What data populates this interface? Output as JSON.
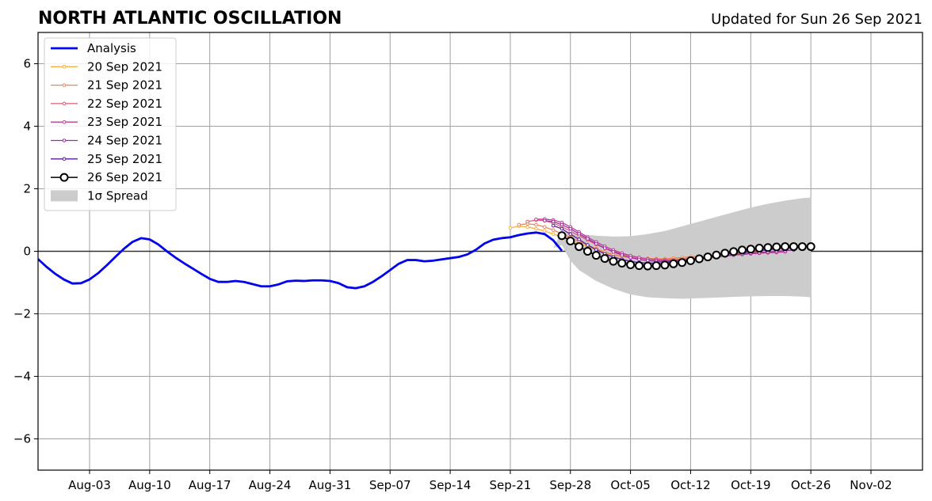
{
  "chart_data": {
    "type": "line",
    "title": "NORTH ATLANTIC OSCILLATION",
    "subtitle": "Updated for Sun 26 Sep 2021",
    "xlabel": "",
    "ylabel": "",
    "xlim": [
      "2021-07-28",
      "2021-11-08"
    ],
    "ylim": [
      -7,
      7
    ],
    "grid": true,
    "legend_position": "top-left",
    "x_ticks": [
      "Aug-03",
      "Aug-10",
      "Aug-17",
      "Aug-24",
      "Aug-31",
      "Sep-07",
      "Sep-14",
      "Sep-21",
      "Sep-28",
      "Oct-05",
      "Oct-12",
      "Oct-19",
      "Oct-26",
      "Nov-02"
    ],
    "x_tick_dates": [
      "2021-08-03",
      "2021-08-10",
      "2021-08-17",
      "2021-08-24",
      "2021-08-31",
      "2021-09-07",
      "2021-09-14",
      "2021-09-21",
      "2021-09-28",
      "2021-10-05",
      "2021-10-12",
      "2021-10-19",
      "2021-10-26",
      "2021-11-02"
    ],
    "y_ticks": [
      6,
      4,
      2,
      0,
      -2,
      -4,
      -6
    ],
    "y_tick_labels": [
      "6",
      "4",
      "2",
      "0",
      "−2",
      "−4",
      "−6"
    ],
    "analysis": {
      "name": "Analysis",
      "color": "#0000ee",
      "x": [
        "2021-07-28",
        "2021-07-29",
        "2021-07-30",
        "2021-07-31",
        "2021-08-01",
        "2021-08-02",
        "2021-08-03",
        "2021-08-04",
        "2021-08-05",
        "2021-08-06",
        "2021-08-07",
        "2021-08-08",
        "2021-08-09",
        "2021-08-10",
        "2021-08-11",
        "2021-08-12",
        "2021-08-13",
        "2021-08-14",
        "2021-08-15",
        "2021-08-16",
        "2021-08-17",
        "2021-08-18",
        "2021-08-19",
        "2021-08-20",
        "2021-08-21",
        "2021-08-22",
        "2021-08-23",
        "2021-08-24",
        "2021-08-25",
        "2021-08-26",
        "2021-08-27",
        "2021-08-28",
        "2021-08-29",
        "2021-08-30",
        "2021-08-31",
        "2021-09-01",
        "2021-09-02",
        "2021-09-03",
        "2021-09-04",
        "2021-09-05",
        "2021-09-06",
        "2021-09-07",
        "2021-09-08",
        "2021-09-09",
        "2021-09-10",
        "2021-09-11",
        "2021-09-12",
        "2021-09-13",
        "2021-09-14",
        "2021-09-15",
        "2021-09-16",
        "2021-09-17",
        "2021-09-18",
        "2021-09-19",
        "2021-09-20",
        "2021-09-21",
        "2021-09-22",
        "2021-09-23",
        "2021-09-24",
        "2021-09-25",
        "2021-09-26",
        "2021-09-27"
      ],
      "y": [
        -0.25,
        -0.5,
        -0.72,
        -0.9,
        -1.03,
        -1.02,
        -0.9,
        -0.7,
        -0.45,
        -0.18,
        0.08,
        0.3,
        0.42,
        0.38,
        0.22,
        0.0,
        -0.2,
        -0.38,
        -0.55,
        -0.72,
        -0.88,
        -0.98,
        -0.98,
        -0.95,
        -0.98,
        -1.05,
        -1.12,
        -1.12,
        -1.06,
        -0.96,
        -0.94,
        -0.95,
        -0.93,
        -0.93,
        -0.95,
        -1.02,
        -1.15,
        -1.18,
        -1.12,
        -0.98,
        -0.8,
        -0.6,
        -0.4,
        -0.28,
        -0.28,
        -0.32,
        -0.3,
        -0.26,
        -0.22,
        -0.18,
        -0.1,
        0.05,
        0.25,
        0.37,
        0.42,
        0.45,
        0.52,
        0.57,
        0.6,
        0.55,
        0.35,
        0.02
      ]
    },
    "forecasts": [
      {
        "name": "20 Sep 2021",
        "color": "#f5b041",
        "x": [
          "2021-09-21",
          "2021-09-22",
          "2021-09-23",
          "2021-09-24",
          "2021-09-25",
          "2021-09-26",
          "2021-09-27",
          "2021-09-28",
          "2021-09-29",
          "2021-09-30",
          "2021-10-01",
          "2021-10-02",
          "2021-10-03",
          "2021-10-04",
          "2021-10-05",
          "2021-10-06",
          "2021-10-07",
          "2021-10-08",
          "2021-10-09",
          "2021-10-10",
          "2021-10-11",
          "2021-10-12",
          "2021-10-13",
          "2021-10-14",
          "2021-10-15",
          "2021-10-16",
          "2021-10-17",
          "2021-10-18",
          "2021-10-19",
          "2021-10-20"
        ],
        "y": [
          0.75,
          0.8,
          0.78,
          0.72,
          0.65,
          0.55,
          0.45,
          0.35,
          0.25,
          0.15,
          0.05,
          -0.05,
          -0.12,
          -0.18,
          -0.22,
          -0.25,
          -0.26,
          -0.27,
          -0.27,
          -0.25,
          -0.23,
          -0.2,
          -0.17,
          -0.14,
          -0.12,
          -0.1,
          -0.08,
          -0.06,
          -0.05,
          -0.04
        ]
      },
      {
        "name": "21 Sep 2021",
        "color": "#f0854f",
        "x": [
          "2021-09-22",
          "2021-09-23",
          "2021-09-24",
          "2021-09-25",
          "2021-09-26",
          "2021-09-27",
          "2021-09-28",
          "2021-09-29",
          "2021-09-30",
          "2021-10-01",
          "2021-10-02",
          "2021-10-03",
          "2021-10-04",
          "2021-10-05",
          "2021-10-06",
          "2021-10-07",
          "2021-10-08",
          "2021-10-09",
          "2021-10-10",
          "2021-10-11",
          "2021-10-12",
          "2021-10-13",
          "2021-10-14",
          "2021-10-15",
          "2021-10-16",
          "2021-10-17",
          "2021-10-18",
          "2021-10-19",
          "2021-10-20",
          "2021-10-21"
        ],
        "y": [
          0.85,
          0.88,
          0.85,
          0.78,
          0.68,
          0.56,
          0.44,
          0.32,
          0.2,
          0.08,
          -0.02,
          -0.1,
          -0.16,
          -0.2,
          -0.22,
          -0.23,
          -0.24,
          -0.24,
          -0.22,
          -0.2,
          -0.18,
          -0.16,
          -0.14,
          -0.12,
          -0.1,
          -0.08,
          -0.06,
          -0.04,
          -0.03,
          -0.02
        ]
      },
      {
        "name": "22 Sep 2021",
        "color": "#e05a77",
        "x": [
          "2021-09-23",
          "2021-09-24",
          "2021-09-25",
          "2021-09-26",
          "2021-09-27",
          "2021-09-28",
          "2021-09-29",
          "2021-09-30",
          "2021-10-01",
          "2021-10-02",
          "2021-10-03",
          "2021-10-04",
          "2021-10-05",
          "2021-10-06",
          "2021-10-07",
          "2021-10-08",
          "2021-10-09",
          "2021-10-10",
          "2021-10-11",
          "2021-10-12",
          "2021-10-13",
          "2021-10-14",
          "2021-10-15",
          "2021-10-16",
          "2021-10-17",
          "2021-10-18",
          "2021-10-19",
          "2021-10-20",
          "2021-10-21",
          "2021-10-22"
        ],
        "y": [
          0.95,
          1.0,
          0.98,
          0.9,
          0.78,
          0.65,
          0.5,
          0.36,
          0.22,
          0.1,
          0.0,
          -0.08,
          -0.15,
          -0.2,
          -0.24,
          -0.26,
          -0.27,
          -0.27,
          -0.25,
          -0.23,
          -0.2,
          -0.18,
          -0.16,
          -0.14,
          -0.12,
          -0.1,
          -0.08,
          -0.06,
          -0.05,
          -0.04
        ]
      },
      {
        "name": "23 Sep 2021",
        "color": "#c03a9c",
        "x": [
          "2021-09-24",
          "2021-09-25",
          "2021-09-26",
          "2021-09-27",
          "2021-09-28",
          "2021-09-29",
          "2021-09-30",
          "2021-10-01",
          "2021-10-02",
          "2021-10-03",
          "2021-10-04",
          "2021-10-05",
          "2021-10-06",
          "2021-10-07",
          "2021-10-08",
          "2021-10-09",
          "2021-10-10",
          "2021-10-11",
          "2021-10-12",
          "2021-10-13",
          "2021-10-14",
          "2021-10-15",
          "2021-10-16",
          "2021-10-17",
          "2021-10-18",
          "2021-10-19",
          "2021-10-20",
          "2021-10-21",
          "2021-10-22",
          "2021-10-23"
        ],
        "y": [
          1.02,
          1.03,
          1.0,
          0.92,
          0.78,
          0.62,
          0.45,
          0.3,
          0.16,
          0.04,
          -0.06,
          -0.14,
          -0.2,
          -0.25,
          -0.28,
          -0.3,
          -0.3,
          -0.28,
          -0.26,
          -0.23,
          -0.2,
          -0.17,
          -0.14,
          -0.12,
          -0.1,
          -0.08,
          -0.06,
          -0.04,
          -0.03,
          -0.02
        ]
      },
      {
        "name": "24 Sep 2021",
        "color": "#9b2aa8",
        "x": [
          "2021-09-25",
          "2021-09-26",
          "2021-09-27",
          "2021-09-28",
          "2021-09-29",
          "2021-09-30",
          "2021-10-01",
          "2021-10-02",
          "2021-10-03",
          "2021-10-04",
          "2021-10-05",
          "2021-10-06",
          "2021-10-07",
          "2021-10-08",
          "2021-10-09",
          "2021-10-10",
          "2021-10-11",
          "2021-10-12",
          "2021-10-13",
          "2021-10-14",
          "2021-10-15",
          "2021-10-16",
          "2021-10-17",
          "2021-10-18",
          "2021-10-19",
          "2021-10-20",
          "2021-10-21",
          "2021-10-22",
          "2021-10-23",
          "2021-10-24"
        ],
        "y": [
          0.98,
          0.95,
          0.85,
          0.72,
          0.56,
          0.4,
          0.24,
          0.1,
          -0.02,
          -0.12,
          -0.2,
          -0.26,
          -0.3,
          -0.32,
          -0.33,
          -0.32,
          -0.3,
          -0.27,
          -0.24,
          -0.21,
          -0.18,
          -0.15,
          -0.12,
          -0.09,
          -0.06,
          -0.04,
          -0.02,
          0.0,
          0.02,
          0.04
        ]
      },
      {
        "name": "25 Sep 2021",
        "color": "#5a1a9a",
        "x": [
          "2021-09-26",
          "2021-09-27",
          "2021-09-28",
          "2021-09-29",
          "2021-09-30",
          "2021-10-01",
          "2021-10-02",
          "2021-10-03",
          "2021-10-04",
          "2021-10-05",
          "2021-10-06",
          "2021-10-07",
          "2021-10-08",
          "2021-10-09",
          "2021-10-10",
          "2021-10-11",
          "2021-10-12",
          "2021-10-13",
          "2021-10-14",
          "2021-10-15",
          "2021-10-16",
          "2021-10-17",
          "2021-10-18",
          "2021-10-19",
          "2021-10-20",
          "2021-10-21",
          "2021-10-22",
          "2021-10-23",
          "2021-10-24",
          "2021-10-25"
        ],
        "y": [
          0.82,
          0.72,
          0.55,
          0.38,
          0.2,
          0.05,
          -0.08,
          -0.18,
          -0.26,
          -0.32,
          -0.36,
          -0.38,
          -0.38,
          -0.36,
          -0.33,
          -0.3,
          -0.26,
          -0.22,
          -0.18,
          -0.14,
          -0.1,
          -0.07,
          -0.04,
          -0.01,
          0.02,
          0.05,
          0.08,
          0.1,
          0.12,
          0.13
        ]
      },
      {
        "name": "26 Sep 2021",
        "color": "#000000",
        "marker": "open-circle",
        "x": [
          "2021-09-27",
          "2021-09-28",
          "2021-09-29",
          "2021-09-30",
          "2021-10-01",
          "2021-10-02",
          "2021-10-03",
          "2021-10-04",
          "2021-10-05",
          "2021-10-06",
          "2021-10-07",
          "2021-10-08",
          "2021-10-09",
          "2021-10-10",
          "2021-10-11",
          "2021-10-12",
          "2021-10-13",
          "2021-10-14",
          "2021-10-15",
          "2021-10-16",
          "2021-10-17",
          "2021-10-18",
          "2021-10-19",
          "2021-10-20",
          "2021-10-21",
          "2021-10-22",
          "2021-10-23",
          "2021-10-24",
          "2021-10-25",
          "2021-10-26"
        ],
        "y": [
          0.5,
          0.33,
          0.15,
          0.0,
          -0.13,
          -0.23,
          -0.32,
          -0.38,
          -0.43,
          -0.46,
          -0.47,
          -0.46,
          -0.44,
          -0.4,
          -0.36,
          -0.3,
          -0.24,
          -0.18,
          -0.12,
          -0.06,
          -0.01,
          0.04,
          0.07,
          0.1,
          0.12,
          0.14,
          0.15,
          0.15,
          0.15,
          0.15
        ]
      }
    ],
    "spread": {
      "name": "1σ Spread",
      "color": "#cccccc",
      "x": [
        "2021-09-26",
        "2021-09-27",
        "2021-09-28",
        "2021-09-29",
        "2021-10-01",
        "2021-10-03",
        "2021-10-05",
        "2021-10-07",
        "2021-10-09",
        "2021-10-11",
        "2021-10-13",
        "2021-10-15",
        "2021-10-17",
        "2021-10-19",
        "2021-10-21",
        "2021-10-23",
        "2021-10-25",
        "2021-10-26"
      ],
      "upper": [
        0.1,
        0.65,
        0.6,
        0.55,
        0.5,
        0.47,
        0.48,
        0.55,
        0.65,
        0.8,
        0.95,
        1.1,
        1.25,
        1.4,
        1.52,
        1.62,
        1.7,
        1.72
      ],
      "lower": [
        0.1,
        0.2,
        -0.3,
        -0.6,
        -0.95,
        -1.2,
        -1.38,
        -1.47,
        -1.5,
        -1.52,
        -1.5,
        -1.48,
        -1.46,
        -1.44,
        -1.43,
        -1.43,
        -1.45,
        -1.47
      ]
    }
  }
}
